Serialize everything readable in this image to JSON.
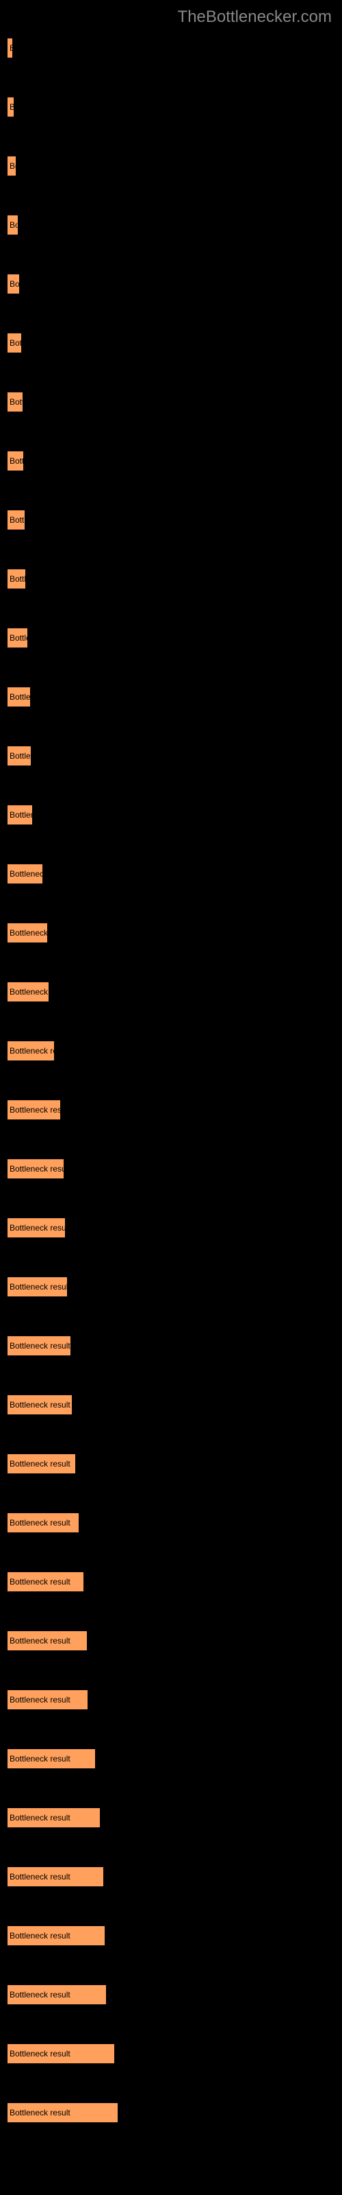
{
  "header": {
    "title": "TheBottlenecker.com"
  },
  "chart": {
    "type": "bar",
    "background_color": "#000000",
    "bar_color": "#ffa15c",
    "label_color": "#888888",
    "bar_text_color": "#000000",
    "bar_text": "Bottleneck result",
    "max_width_percent": 35,
    "bars": [
      {
        "width_percent": 1.8
      },
      {
        "width_percent": 2.2
      },
      {
        "width_percent": 3.0
      },
      {
        "width_percent": 3.5
      },
      {
        "width_percent": 4.0
      },
      {
        "width_percent": 4.5
      },
      {
        "width_percent": 5.0
      },
      {
        "width_percent": 5.3
      },
      {
        "width_percent": 5.6
      },
      {
        "width_percent": 5.8
      },
      {
        "width_percent": 6.5
      },
      {
        "width_percent": 7.2
      },
      {
        "width_percent": 7.5
      },
      {
        "width_percent": 8.0
      },
      {
        "width_percent": 11.0
      },
      {
        "width_percent": 12.5
      },
      {
        "width_percent": 13.0
      },
      {
        "width_percent": 14.5
      },
      {
        "width_percent": 16.5
      },
      {
        "width_percent": 17.5
      },
      {
        "width_percent": 18.0
      },
      {
        "width_percent": 18.5
      },
      {
        "width_percent": 19.5
      },
      {
        "width_percent": 20.0
      },
      {
        "width_percent": 21.0
      },
      {
        "width_percent": 22.0
      },
      {
        "width_percent": 23.5
      },
      {
        "width_percent": 24.5
      },
      {
        "width_percent": 24.8
      },
      {
        "width_percent": 27.0
      },
      {
        "width_percent": 28.5
      },
      {
        "width_percent": 29.5
      },
      {
        "width_percent": 30.0
      },
      {
        "width_percent": 30.5
      },
      {
        "width_percent": 33.0
      },
      {
        "width_percent": 34.0
      }
    ]
  }
}
